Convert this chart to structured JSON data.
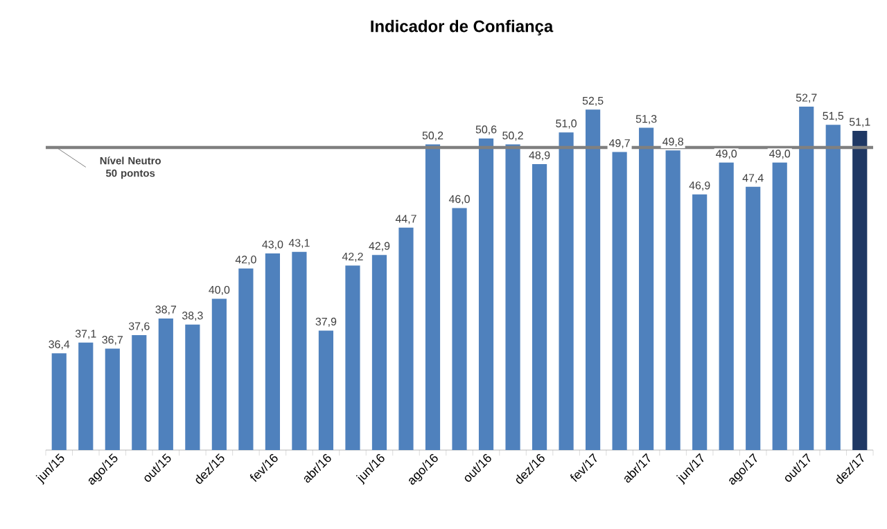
{
  "chart_data": {
    "type": "bar",
    "title": "Indicador de Confiança",
    "categories": [
      "jun/15",
      null,
      "ago/15",
      null,
      "out/15",
      null,
      "dez/15",
      null,
      "fev/16",
      null,
      "abr/16",
      null,
      "jun/16",
      null,
      "ago/16",
      null,
      "out/16",
      null,
      "dez/16",
      null,
      "fev/17",
      null,
      "abr/17",
      null,
      "jun/17",
      null,
      "ago/17",
      null,
      "out/17",
      null,
      "dez/17"
    ],
    "values": [
      36.4,
      37.1,
      36.7,
      37.6,
      38.7,
      38.3,
      40.0,
      42.0,
      43.0,
      43.1,
      37.9,
      42.2,
      42.9,
      44.7,
      50.2,
      46.0,
      50.6,
      50.2,
      48.9,
      51.0,
      52.5,
      49.7,
      51.3,
      49.8,
      46.9,
      49.0,
      47.4,
      49.0,
      52.7,
      51.5,
      51.1
    ],
    "value_labels": [
      "36,4",
      "37,1",
      "36,7",
      "37,6",
      "38,7",
      "38,3",
      "40,0",
      "42,0",
      "43,0",
      "43,1",
      "37,9",
      "42,2",
      "42,9",
      "44,7",
      "50,2",
      "46,0",
      "50,6",
      "50,2",
      "48,9",
      "51,0",
      "52,5",
      "49,7",
      "51,3",
      "49,8",
      "46,9",
      "49,0",
      "47,4",
      "49,0",
      "52,7",
      "51,5",
      "51,1"
    ],
    "colors": [
      "#4f81bd",
      "#4f81bd",
      "#4f81bd",
      "#4f81bd",
      "#4f81bd",
      "#4f81bd",
      "#4f81bd",
      "#4f81bd",
      "#4f81bd",
      "#4f81bd",
      "#4f81bd",
      "#4f81bd",
      "#4f81bd",
      "#4f81bd",
      "#4f81bd",
      "#4f81bd",
      "#4f81bd",
      "#4f81bd",
      "#4f81bd",
      "#4f81bd",
      "#4f81bd",
      "#4f81bd",
      "#4f81bd",
      "#4f81bd",
      "#4f81bd",
      "#4f81bd",
      "#4f81bd",
      "#4f81bd",
      "#4f81bd",
      "#4f81bd",
      "#1f3864"
    ],
    "ylim": [
      30,
      52.7
    ],
    "tick_labels": "x",
    "ref_lines": [
      {
        "axis": "y",
        "value": 50,
        "label": "Nível Neutro 50 pontos",
        "color": "#808080"
      }
    ]
  }
}
